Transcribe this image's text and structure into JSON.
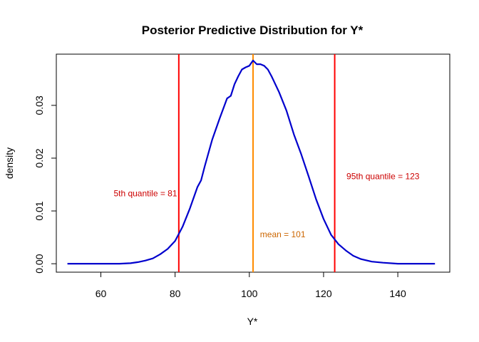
{
  "chart_data": {
    "type": "line",
    "title": "Posterior Predictive Distribution for Y*",
    "xlabel": "Y*",
    "ylabel": "density",
    "xlim": [
      48,
      154
    ],
    "ylim": [
      -0.0016,
      0.0397
    ],
    "x_ticks": [
      60,
      80,
      100,
      120,
      140
    ],
    "x_tick_labels": [
      "60",
      "80",
      "100",
      "120",
      "140"
    ],
    "y_ticks": [
      0.0,
      0.01,
      0.02,
      0.03
    ],
    "y_tick_labels": [
      "0.00",
      "0.01",
      "0.02",
      "0.03"
    ],
    "grid": false,
    "series": [
      {
        "color": "#0000CD",
        "x": [
          51,
          55,
          60,
          65,
          68,
          70,
          72,
          74,
          76,
          78,
          80,
          82,
          84,
          86,
          87,
          88,
          90,
          92,
          94,
          95,
          96,
          97,
          98,
          99,
          100,
          101,
          102,
          103,
          104,
          105,
          106,
          108,
          110,
          112,
          114,
          116,
          118,
          120,
          122,
          124,
          126,
          128,
          130,
          133,
          136,
          140,
          145,
          150
        ],
        "y": [
          0.0,
          0.0,
          0.0,
          0.0,
          0.0001,
          0.0003,
          0.0006,
          0.001,
          0.0018,
          0.0028,
          0.0043,
          0.007,
          0.0105,
          0.0145,
          0.0158,
          0.0185,
          0.0235,
          0.0275,
          0.0313,
          0.0318,
          0.034,
          0.0355,
          0.0368,
          0.0372,
          0.0375,
          0.0385,
          0.0378,
          0.0378,
          0.0375,
          0.0368,
          0.0355,
          0.0325,
          0.029,
          0.0245,
          0.0207,
          0.0165,
          0.0122,
          0.0085,
          0.0055,
          0.0037,
          0.0025,
          0.0015,
          0.0009,
          0.0004,
          0.0002,
          0.0,
          0.0,
          0.0
        ]
      }
    ],
    "vlines": [
      {
        "x": 81,
        "color": "#FF0000"
      },
      {
        "x": 101,
        "color": "#FF8C00"
      },
      {
        "x": 123,
        "color": "#FF0000"
      }
    ],
    "annotations": [
      {
        "text": "5th quantile = 81",
        "x": 72,
        "y": 0.0128,
        "color": "#CC0000"
      },
      {
        "text": "mean = 101",
        "x": 109,
        "y": 0.005,
        "color": "#CC6600"
      },
      {
        "text": "95th quantile = 123",
        "x": 136,
        "y": 0.016,
        "color": "#CC0000"
      }
    ]
  }
}
